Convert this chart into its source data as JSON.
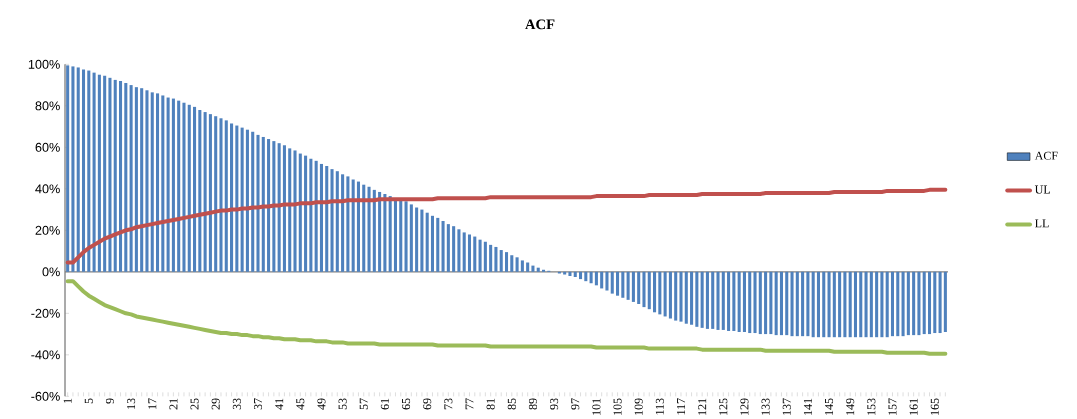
{
  "chart_data": {
    "type": "bar",
    "title": "ACF",
    "categories": [
      "1",
      null,
      null,
      null,
      "5",
      null,
      null,
      null,
      "9",
      null,
      null,
      null,
      "13",
      null,
      null,
      null,
      "17",
      null,
      null,
      null,
      "21",
      null,
      null,
      null,
      "25",
      null,
      null,
      null,
      "29",
      null,
      null,
      null,
      "33",
      null,
      null,
      null,
      "37",
      null,
      null,
      null,
      "41",
      null,
      null,
      null,
      "45",
      null,
      null,
      null,
      "49",
      null,
      null,
      null,
      "53",
      null,
      null,
      null,
      "57",
      null,
      null,
      null,
      "61",
      null,
      null,
      null,
      "65",
      null,
      null,
      null,
      "69",
      null,
      null,
      null,
      "73",
      null,
      null,
      null,
      "77",
      null,
      null,
      null,
      "81",
      null,
      null,
      null,
      "85",
      null,
      null,
      null,
      "89",
      null,
      null,
      null,
      "93",
      null,
      null,
      null,
      "97",
      null,
      null,
      null,
      "101",
      null,
      null,
      null,
      "105",
      null,
      null,
      null,
      "109",
      null,
      null,
      null,
      "113",
      null,
      null,
      null,
      "117",
      null,
      null,
      null,
      "121",
      null,
      null,
      null,
      "125",
      null,
      null,
      null,
      "129",
      null,
      null,
      null,
      "133",
      null,
      null,
      null,
      "137",
      null,
      null,
      null,
      "141",
      null,
      null,
      null,
      "145",
      null,
      null,
      null,
      "149",
      null,
      null,
      null,
      "153",
      null,
      null,
      null,
      "157",
      null,
      null,
      null,
      "161",
      null,
      null,
      null,
      "165",
      null,
      null
    ],
    "series": [
      {
        "name": "ACF",
        "color": "#4f81bd",
        "values": [
          99.5,
          99,
          98.5,
          97.5,
          97,
          96,
          95,
          94.5,
          93.5,
          92.5,
          92,
          91,
          90,
          89,
          88.5,
          87.5,
          86.5,
          86,
          85,
          84,
          83.5,
          82.5,
          81.5,
          80.5,
          79.5,
          78,
          77,
          76,
          75,
          74,
          73,
          71.5,
          70.5,
          69.5,
          68.5,
          67.5,
          66,
          65,
          64,
          63,
          62,
          61,
          59.5,
          58.5,
          57,
          56,
          54.5,
          53.5,
          52,
          51,
          49.5,
          48.5,
          47,
          46,
          44.5,
          43.5,
          42,
          41,
          39.5,
          38.5,
          37.5,
          36.5,
          35.5,
          35,
          34,
          32.5,
          31,
          30,
          28.5,
          27,
          26,
          24.5,
          23,
          22,
          20.5,
          19,
          18,
          17,
          15.5,
          14.5,
          13,
          12,
          10.5,
          9.5,
          8,
          7,
          5.5,
          4.5,
          3,
          2,
          1,
          0.5,
          null,
          -0.8,
          -1.3,
          -2,
          -2.5,
          -3.5,
          -4.5,
          -5.5,
          -6.5,
          -8,
          -9,
          -10.5,
          -11.5,
          -12.5,
          -13.5,
          -14.5,
          -15.5,
          -17,
          -18,
          -19.5,
          -20.5,
          -21.5,
          -22.5,
          -23.5,
          -24,
          -25,
          -25.5,
          -26.5,
          -27,
          -27.5,
          -27.5,
          -28,
          -28,
          -28.5,
          -28.5,
          -29,
          -29,
          -29.5,
          -29.5,
          -30,
          -30,
          -30,
          -30.5,
          -30.5,
          -30.5,
          -31,
          -31,
          -31,
          -31,
          -31.5,
          -31.5,
          -31.5,
          -31.5,
          -31.5,
          -31.5,
          -31.5,
          -31.5,
          -31.5,
          -31.5,
          -31.5,
          -31.5,
          -31.5,
          -31.5,
          -31.5,
          -31,
          -31,
          -31,
          -30.5,
          -30.5,
          -30.5,
          -30,
          -30,
          -29.5,
          -29.5,
          -29
        ]
      },
      {
        "name": "UL",
        "type": "line",
        "color": "#c0504d",
        "values": [
          4.5,
          4.5,
          7,
          9.5,
          11.5,
          13,
          14.5,
          16,
          17,
          18,
          19,
          20,
          20.5,
          21.5,
          22,
          22.5,
          23,
          23.5,
          24,
          24.5,
          25,
          25.5,
          26,
          26.5,
          27,
          27.5,
          28,
          28.5,
          29,
          29.5,
          29.5,
          30,
          30,
          30.5,
          30.5,
          31,
          31,
          31.5,
          31.5,
          32,
          32,
          32.5,
          32.5,
          32.5,
          33,
          33,
          33,
          33.5,
          33.5,
          33.5,
          34,
          34,
          34,
          34.5,
          34.5,
          34.5,
          34.5,
          34.5,
          34.5,
          35,
          35,
          35,
          35,
          35,
          35,
          35,
          35,
          35,
          35,
          35,
          35.5,
          35.5,
          35.5,
          35.5,
          35.5,
          35.5,
          35.5,
          35.5,
          35.5,
          35.5,
          36,
          36,
          36,
          36,
          36,
          36,
          36,
          36,
          36,
          36,
          36,
          36,
          36,
          36,
          36,
          36,
          36,
          36,
          36,
          36,
          36.5,
          36.5,
          36.5,
          36.5,
          36.5,
          36.5,
          36.5,
          36.5,
          36.5,
          36.5,
          37,
          37,
          37,
          37,
          37,
          37,
          37,
          37,
          37,
          37,
          37.5,
          37.5,
          37.5,
          37.5,
          37.5,
          37.5,
          37.5,
          37.5,
          37.5,
          37.5,
          37.5,
          37.5,
          38,
          38,
          38,
          38,
          38,
          38,
          38,
          38,
          38,
          38,
          38,
          38,
          38,
          38.5,
          38.5,
          38.5,
          38.5,
          38.5,
          38.5,
          38.5,
          38.5,
          38.5,
          38.5,
          39,
          39,
          39,
          39,
          39,
          39,
          39,
          39,
          39.5,
          39.5,
          39.5,
          39.5
        ]
      },
      {
        "name": "LL",
        "type": "line",
        "color": "#9bbb59",
        "values": [
          -4.5,
          -4.5,
          -7,
          -9.5,
          -11.5,
          -13,
          -14.5,
          -16,
          -17,
          -18,
          -19,
          -20,
          -20.5,
          -21.5,
          -22,
          -22.5,
          -23,
          -23.5,
          -24,
          -24.5,
          -25,
          -25.5,
          -26,
          -26.5,
          -27,
          -27.5,
          -28,
          -28.5,
          -29,
          -29.5,
          -29.5,
          -30,
          -30,
          -30.5,
          -30.5,
          -31,
          -31,
          -31.5,
          -31.5,
          -32,
          -32,
          -32.5,
          -32.5,
          -32.5,
          -33,
          -33,
          -33,
          -33.5,
          -33.5,
          -33.5,
          -34,
          -34,
          -34,
          -34.5,
          -34.5,
          -34.5,
          -34.5,
          -34.5,
          -34.5,
          -35,
          -35,
          -35,
          -35,
          -35,
          -35,
          -35,
          -35,
          -35,
          -35,
          -35,
          -35.5,
          -35.5,
          -35.5,
          -35.5,
          -35.5,
          -35.5,
          -35.5,
          -35.5,
          -35.5,
          -35.5,
          -36,
          -36,
          -36,
          -36,
          -36,
          -36,
          -36,
          -36,
          -36,
          -36,
          -36,
          -36,
          -36,
          -36,
          -36,
          -36,
          -36,
          -36,
          -36,
          -36,
          -36.5,
          -36.5,
          -36.5,
          -36.5,
          -36.5,
          -36.5,
          -36.5,
          -36.5,
          -36.5,
          -36.5,
          -37,
          -37,
          -37,
          -37,
          -37,
          -37,
          -37,
          -37,
          -37,
          -37,
          -37.5,
          -37.5,
          -37.5,
          -37.5,
          -37.5,
          -37.5,
          -37.5,
          -37.5,
          -37.5,
          -37.5,
          -37.5,
          -37.5,
          -38,
          -38,
          -38,
          -38,
          -38,
          -38,
          -38,
          -38,
          -38,
          -38,
          -38,
          -38,
          -38,
          -38.5,
          -38.5,
          -38.5,
          -38.5,
          -38.5,
          -38.5,
          -38.5,
          -38.5,
          -38.5,
          -38.5,
          -39,
          -39,
          -39,
          -39,
          -39,
          -39,
          -39,
          -39,
          -39.5,
          -39.5,
          -39.5,
          -39.5
        ]
      }
    ],
    "ylim": [
      -60,
      100
    ],
    "yticks": [
      {
        "value": -60,
        "label": "-60%"
      },
      {
        "value": -40,
        "label": "-40%"
      },
      {
        "value": -20,
        "label": "-20%"
      },
      {
        "value": 0,
        "label": "0%"
      },
      {
        "value": 20,
        "label": "20%"
      },
      {
        "value": 40,
        "label": "40%"
      },
      {
        "value": 60,
        "label": "60%"
      },
      {
        "value": 80,
        "label": "80%"
      },
      {
        "value": 100,
        "label": "100%"
      }
    ],
    "legend": "right"
  }
}
